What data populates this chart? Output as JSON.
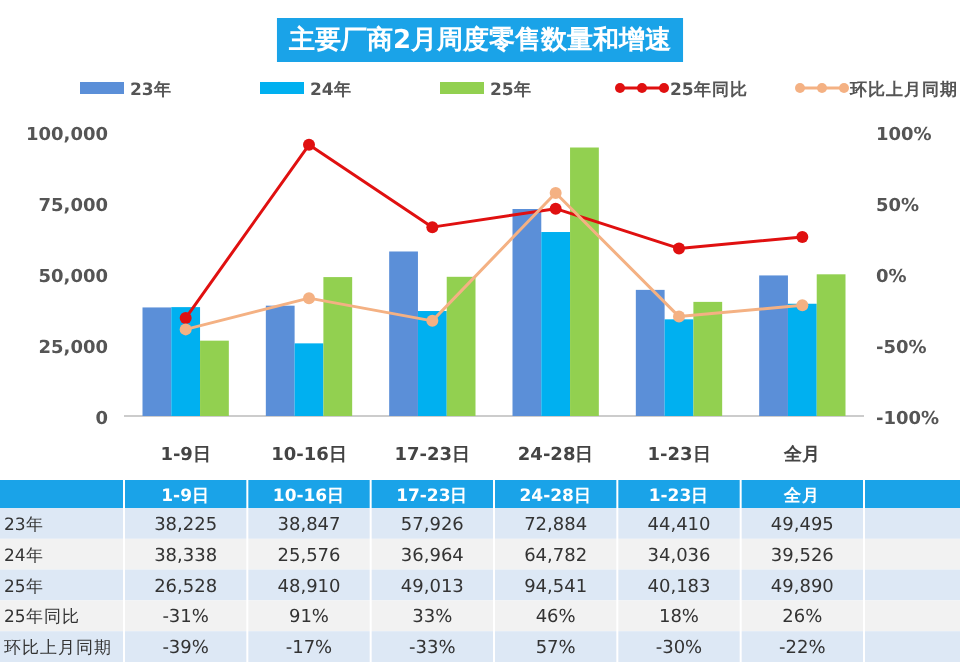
{
  "chart_data": {
    "type": "bar",
    "title": "主要厂商2月周度零售数量和增速",
    "categories": [
      "1-9日",
      "10-16日",
      "17-23日",
      "24-28日",
      "1-23日",
      "全月"
    ],
    "ylim": [
      0,
      100000
    ],
    "yticks": [
      {
        "value": 0,
        "label": "0"
      },
      {
        "value": 25000,
        "label": "25,000"
      },
      {
        "value": 50000,
        "label": "50,000"
      },
      {
        "value": 75000,
        "label": "75,000"
      },
      {
        "value": 100000,
        "label": "100,000"
      }
    ],
    "y2lim": [
      -100,
      100
    ],
    "y2ticks": [
      {
        "value": -100,
        "label": "-100%"
      },
      {
        "value": -50,
        "label": "-50%"
      },
      {
        "value": 0,
        "label": "0%"
      },
      {
        "value": 50,
        "label": "50%"
      },
      {
        "value": 100,
        "label": "100%"
      }
    ],
    "legend": "top",
    "marker": "circle",
    "series": [
      {
        "name": "23年",
        "color": "#5b8fd8",
        "values": [
          38225,
          38847,
          57926,
          72884,
          44410,
          49495
        ],
        "value_labels": [
          "38,225",
          "38,847",
          "57,926",
          "72,884",
          "44,410",
          "49,495"
        ]
      },
      {
        "name": "24年",
        "color": "#00b0f0",
        "values": [
          38338,
          25576,
          36964,
          64782,
          34036,
          39526
        ],
        "value_labels": [
          "38,338",
          "25,576",
          "36,964",
          "64,782",
          "34,036",
          "39,526"
        ]
      },
      {
        "name": "25年",
        "color": "#92d050",
        "values": [
          26528,
          48910,
          49013,
          94541,
          40183,
          49890
        ],
        "value_labels": [
          "26,528",
          "48,910",
          "49,013",
          "94,541",
          "40,183",
          "49,890"
        ]
      },
      {
        "name": "25年同比",
        "type": "line",
        "axis": "y2",
        "color": "#e01010",
        "values": [
          -31,
          91,
          33,
          46,
          18,
          26
        ],
        "value_labels": [
          "-31%",
          "91%",
          "33%",
          "46%",
          "18%",
          "26%"
        ]
      },
      {
        "name": "环比上月同期",
        "type": "line",
        "axis": "y2",
        "color": "#f4b183",
        "values": [
          -39,
          -17,
          -33,
          57,
          -30,
          -22
        ],
        "value_labels": [
          "-39%",
          "-17%",
          "-33%",
          "57%",
          "-30%",
          "-22%"
        ]
      }
    ]
  }
}
